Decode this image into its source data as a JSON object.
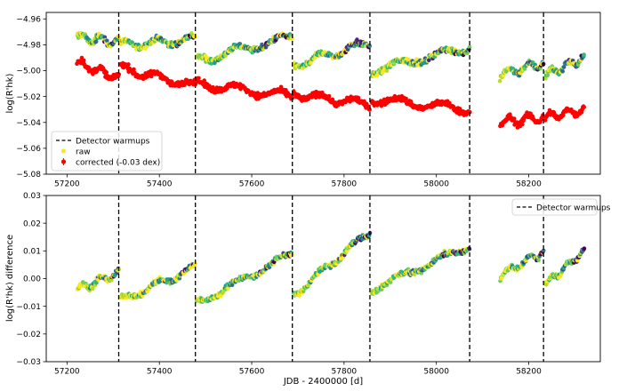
{
  "chart_data": [
    {
      "type": "scatter",
      "panel": "top",
      "ylabel": "log(R'hk)",
      "xlabel": "",
      "xlim": [
        57155,
        58355
      ],
      "ylim": [
        -5.08,
        -4.955
      ],
      "xticks": [
        57200,
        57400,
        57600,
        57800,
        58000,
        58200
      ],
      "yticks": [
        -5.08,
        -5.06,
        -5.04,
        -5.02,
        -5.0,
        -4.98,
        -4.96
      ],
      "ytick_labels": [
        "−5.08",
        "−5.06",
        "−5.04",
        "−5.02",
        "−5.00",
        "−4.98",
        "−4.96"
      ],
      "vlines": [
        57312,
        57478,
        57688,
        57856,
        58072,
        58232
      ],
      "legend": {
        "position": "lower-left",
        "entries": [
          "Detector warmups",
          "raw",
          "corrected (-0.03 dex)"
        ]
      },
      "series": [
        {
          "name": "raw",
          "color_scale": "viridis (time, yellow → purple)",
          "segments": [
            {
              "x": [
                57222,
                57312
              ],
              "y": [
                -4.974,
                -4.978
              ]
            },
            {
              "x": [
                57316,
                57478
              ],
              "y": [
                -4.98,
                -4.976
              ]
            },
            {
              "x": [
                57481,
                57688
              ],
              "y": [
                -4.992,
                -4.974
              ]
            },
            {
              "x": [
                57691,
                57856
              ],
              "y": [
                -4.996,
                -4.978
              ]
            },
            {
              "x": [
                57860,
                58072
              ],
              "y": [
                -5.0,
                -4.982
              ]
            },
            {
              "x": [
                58138,
                58232
              ],
              "y": [
                -5.003,
                -4.994
              ]
            },
            {
              "x": [
                58236,
                58320
              ],
              "y": [
                -5.003,
                -4.99
              ]
            }
          ]
        },
        {
          "name": "corrected (-0.03 dex)",
          "color": "#ff0000",
          "segments": [
            {
              "x": [
                57222,
                57312
              ],
              "y": [
                -4.994,
                -5.006
              ]
            },
            {
              "x": [
                57316,
                57478
              ],
              "y": [
                -4.998,
                -5.012
              ]
            },
            {
              "x": [
                57481,
                57688
              ],
              "y": [
                -5.01,
                -5.02
              ]
            },
            {
              "x": [
                57691,
                57856
              ],
              "y": [
                -5.018,
                -5.026
              ]
            },
            {
              "x": [
                57860,
                58072
              ],
              "y": [
                -5.022,
                -5.03
              ]
            },
            {
              "x": [
                58138,
                58232
              ],
              "y": [
                -5.04,
                -5.036
              ]
            },
            {
              "x": [
                58236,
                58320
              ],
              "y": [
                -5.036,
                -5.03
              ]
            }
          ]
        }
      ]
    },
    {
      "type": "scatter",
      "panel": "bottom",
      "ylabel": "log(R'hk) difference",
      "xlabel": "JDB - 2400000 [d]",
      "xlim": [
        57155,
        58355
      ],
      "ylim": [
        -0.03,
        0.03
      ],
      "xticks": [
        57200,
        57400,
        57600,
        57800,
        58000,
        58200
      ],
      "yticks": [
        -0.03,
        -0.02,
        -0.01,
        0.0,
        0.01,
        0.02,
        0.03
      ],
      "ytick_labels": [
        "−0.03",
        "−0.02",
        "−0.01",
        "0.00",
        "0.01",
        "0.02",
        "0.03"
      ],
      "vlines": [
        57312,
        57478,
        57688,
        57856,
        58072,
        58232
      ],
      "legend": {
        "position": "top-right",
        "entries": [
          "Detector warmups"
        ]
      },
      "series": [
        {
          "name": "difference",
          "color_scale": "viridis (time, yellow → purple)",
          "segments": [
            {
              "x": [
                57222,
                57312
              ],
              "y": [
                -0.004,
                0.002
              ]
            },
            {
              "x": [
                57316,
                57478
              ],
              "y": [
                -0.008,
                0.004
              ]
            },
            {
              "x": [
                57481,
                57688
              ],
              "y": [
                -0.009,
                0.009
              ]
            },
            {
              "x": [
                57691,
                57856
              ],
              "y": [
                -0.006,
                0.017
              ]
            },
            {
              "x": [
                57860,
                58072
              ],
              "y": [
                -0.004,
                0.012
              ]
            },
            {
              "x": [
                58138,
                58232
              ],
              "y": [
                0.001,
                0.01
              ]
            },
            {
              "x": [
                58236,
                58320
              ],
              "y": [
                -0.002,
                0.01
              ]
            }
          ]
        }
      ]
    }
  ]
}
